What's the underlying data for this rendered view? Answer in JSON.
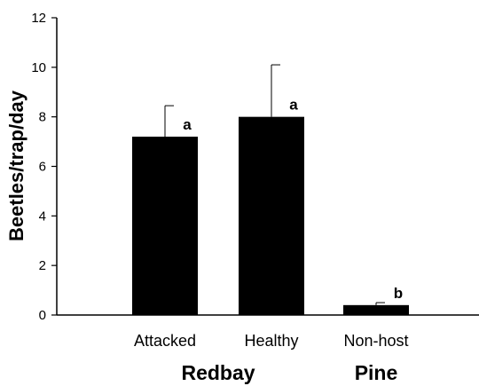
{
  "chart_data": {
    "type": "bar",
    "categories": [
      "Attacked",
      "Healthy",
      "Non-host"
    ],
    "values": [
      7.2,
      8.0,
      0.4
    ],
    "error_upper": [
      8.45,
      10.1,
      0.5
    ],
    "significance_letters": [
      "a",
      "a",
      "b"
    ],
    "groups": [
      {
        "label": "Redbay",
        "categories": [
          "Attacked",
          "Healthy"
        ]
      },
      {
        "label": "Pine",
        "categories": [
          "Non-host"
        ]
      }
    ],
    "ylabel": "Beetles/trap/day",
    "ylim": [
      0,
      12
    ],
    "yticks": [
      0,
      2,
      4,
      6,
      8,
      10,
      12
    ],
    "bar_color": "#000000",
    "grid": false
  }
}
